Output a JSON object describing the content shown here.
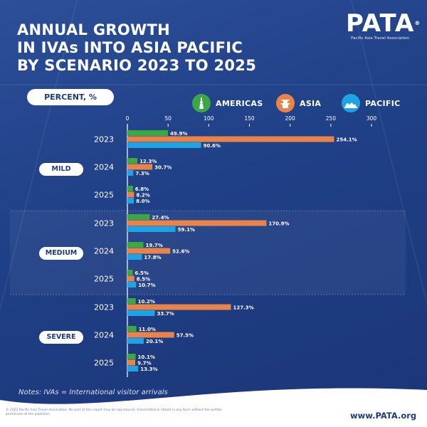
{
  "title_lines": [
    "ANNUAL GROWTH",
    "IN IVAs INTO ASIA PACIFIC",
    "BY SCENARIO 2023 TO 2025"
  ],
  "logo": {
    "text": "PATA",
    "registered": "®",
    "subtitle": "Pacific Asia Travel Association"
  },
  "unit_label": "PERCENT, %",
  "legend": [
    {
      "name": "AMERICAS",
      "color": "#3aa845",
      "icon": "statue-of-liberty-icon"
    },
    {
      "name": "ASIA",
      "color": "#e8834a",
      "icon": "pagoda-icon"
    },
    {
      "name": "PACIFIC",
      "color": "#1ea3e6",
      "icon": "opera-house-icon"
    }
  ],
  "chart_data": {
    "type": "bar",
    "orientation": "horizontal",
    "grouping": [
      "scenario",
      "year"
    ],
    "xlim": [
      0,
      300
    ],
    "x_ticks": [
      "0",
      "50",
      "100",
      "150",
      "200",
      "250",
      "300"
    ],
    "series_names": [
      "AMERICAS",
      "ASIA",
      "PACIFIC"
    ],
    "series_colors": [
      "#3aa845",
      "#e8834a",
      "#1ea3e6"
    ],
    "value_suffix": "%",
    "scenarios": [
      {
        "name": "MILD",
        "years": [
          {
            "year": "2023",
            "values": [
              49.9,
              254.1,
              90.6
            ]
          },
          {
            "year": "2024",
            "values": [
              12.3,
              30.7,
              7.3
            ]
          },
          {
            "year": "2025",
            "values": [
              6.8,
              8.2,
              8.0
            ]
          }
        ]
      },
      {
        "name": "MEDIUM",
        "years": [
          {
            "year": "2023",
            "values": [
              27.4,
              170.9,
              59.1
            ]
          },
          {
            "year": "2024",
            "values": [
              19.7,
              52.6,
              17.8
            ]
          },
          {
            "year": "2025",
            "values": [
              6.5,
              8.5,
              10.7
            ]
          }
        ]
      },
      {
        "name": "SEVERE",
        "years": [
          {
            "year": "2023",
            "values": [
              10.2,
              127.3,
              33.7
            ]
          },
          {
            "year": "2024",
            "values": [
              11.0,
              57.5,
              20.1
            ]
          },
          {
            "year": "2025",
            "values": [
              10.1,
              9.7,
              13.3
            ]
          }
        ]
      }
    ]
  },
  "note": "Notes: IVAs = International visitor arrivals",
  "copyright": "© 2022 Pacific Asia Travel Association. No part of this report may be reproduced, transmitted or stored in any form without the written permission of the publisher.",
  "url": "www.PATA.org"
}
